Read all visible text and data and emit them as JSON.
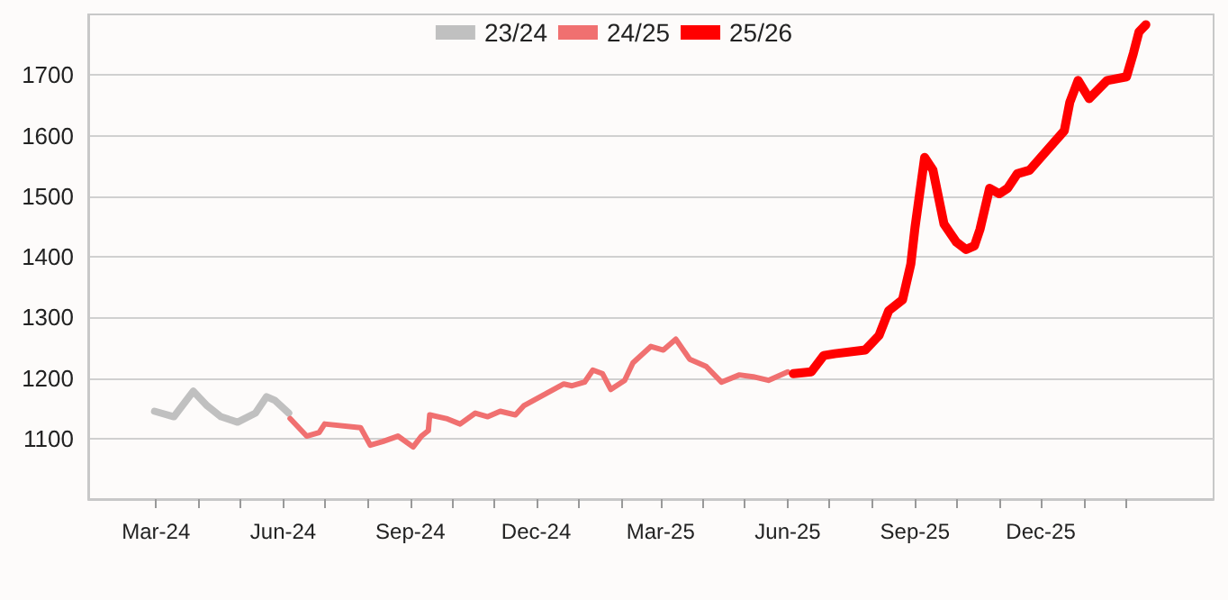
{
  "chart_data": {
    "type": "line",
    "legend": "top",
    "grid": "y",
    "marker": "none",
    "line_style": "solid",
    "xlim": [
      "2024-01-12",
      "2026-04-05"
    ],
    "xticks": [
      {
        "value": "2024-03-01",
        "label": "Mar-24"
      },
      {
        "value": "2024-04-01",
        "label": null
      },
      {
        "value": "2024-05-01",
        "label": null
      },
      {
        "value": "2024-06-01",
        "label": "Jun-24"
      },
      {
        "value": "2024-07-01",
        "label": null
      },
      {
        "value": "2024-08-01",
        "label": null
      },
      {
        "value": "2024-09-01",
        "label": "Sep-24"
      },
      {
        "value": "2024-10-01",
        "label": null
      },
      {
        "value": "2024-11-01",
        "label": null
      },
      {
        "value": "2024-12-01",
        "label": "Dec-24"
      },
      {
        "value": "2025-01-01",
        "label": null
      },
      {
        "value": "2025-02-01",
        "label": null
      },
      {
        "value": "2025-03-01",
        "label": "Mar-25"
      },
      {
        "value": "2025-04-01",
        "label": null
      },
      {
        "value": "2025-05-01",
        "label": null
      },
      {
        "value": "2025-06-01",
        "label": "Jun-25"
      },
      {
        "value": "2025-07-01",
        "label": null
      },
      {
        "value": "2025-08-01",
        "label": null
      },
      {
        "value": "2025-09-01",
        "label": "Sep-25"
      },
      {
        "value": "2025-10-01",
        "label": null
      },
      {
        "value": "2025-11-01",
        "label": null
      },
      {
        "value": "2025-12-01",
        "label": "Dec-25"
      },
      {
        "value": "2026-01-01",
        "label": null
      },
      {
        "value": "2026-02-01",
        "label": null
      }
    ],
    "ylim": [
      1000,
      1800
    ],
    "yticks": [
      1100,
      1200,
      1300,
      1400,
      1500,
      1600,
      1700
    ],
    "series": [
      {
        "name": "23/24",
        "color": "#c0c0c0",
        "x": [
          "2024-02-29",
          "2024-03-14",
          "2024-03-28",
          "2024-04-07",
          "2024-04-17",
          "2024-04-29",
          "2024-05-12",
          "2024-05-20",
          "2024-05-26",
          "2024-06-05"
        ],
        "values": [
          1145,
          1136,
          1178,
          1154,
          1136,
          1127,
          1142,
          1169,
          1163,
          1142
        ]
      },
      {
        "name": "24/25",
        "color": "#f07070",
        "x": [
          "2024-06-06",
          "2024-06-18",
          "2024-06-27",
          "2024-07-01",
          "2024-07-27",
          "2024-08-03",
          "2024-08-12",
          "2024-08-23",
          "2024-09-03",
          "2024-09-09",
          "2024-09-14",
          "2024-09-15",
          "2024-09-27",
          "2024-10-07",
          "2024-10-18",
          "2024-10-27",
          "2024-11-05",
          "2024-11-16",
          "2024-11-22",
          "2024-12-21",
          "2024-12-27",
          "2025-01-05",
          "2025-01-11",
          "2025-01-18",
          "2025-01-24",
          "2025-02-03",
          "2025-02-09",
          "2025-02-22",
          "2025-03-03",
          "2025-03-12",
          "2025-03-22",
          "2025-04-03",
          "2025-04-14",
          "2025-04-27",
          "2025-05-07",
          "2025-05-18",
          "2025-06-01"
        ],
        "values": [
          1133,
          1104,
          1110,
          1124,
          1118,
          1089,
          1095,
          1104,
          1086,
          1104,
          1113,
          1139,
          1133,
          1124,
          1142,
          1136,
          1145,
          1139,
          1154,
          1190,
          1187,
          1193,
          1213,
          1207,
          1181,
          1196,
          1225,
          1252,
          1246,
          1264,
          1231,
          1219,
          1193,
          1205,
          1202,
          1196,
          1210
        ]
      },
      {
        "name": "25/26",
        "color": "#ff0000",
        "x": [
          "2025-06-05",
          "2025-06-18",
          "2025-06-27",
          "2025-07-05",
          "2025-07-27",
          "2025-08-06",
          "2025-08-13",
          "2025-08-23",
          "2025-08-29",
          "2025-09-01",
          "2025-09-08",
          "2025-09-14",
          "2025-09-22",
          "2025-10-01",
          "2025-10-08",
          "2025-10-14",
          "2025-10-18",
          "2025-10-25",
          "2025-11-01",
          "2025-11-07",
          "2025-11-14",
          "2025-11-23",
          "2025-12-01",
          "2025-12-18",
          "2025-12-22",
          "2025-12-28",
          "2026-01-05",
          "2026-01-18",
          "2026-02-01",
          "2026-02-06",
          "2026-02-10",
          "2026-02-15"
        ],
        "values": [
          1207,
          1210,
          1237,
          1240,
          1246,
          1270,
          1311,
          1329,
          1388,
          1448,
          1564,
          1543,
          1454,
          1424,
          1412,
          1418,
          1445,
          1513,
          1504,
          1513,
          1537,
          1543,
          1564,
          1608,
          1655,
          1691,
          1661,
          1691,
          1697,
          1736,
          1771,
          1783
        ]
      }
    ]
  }
}
